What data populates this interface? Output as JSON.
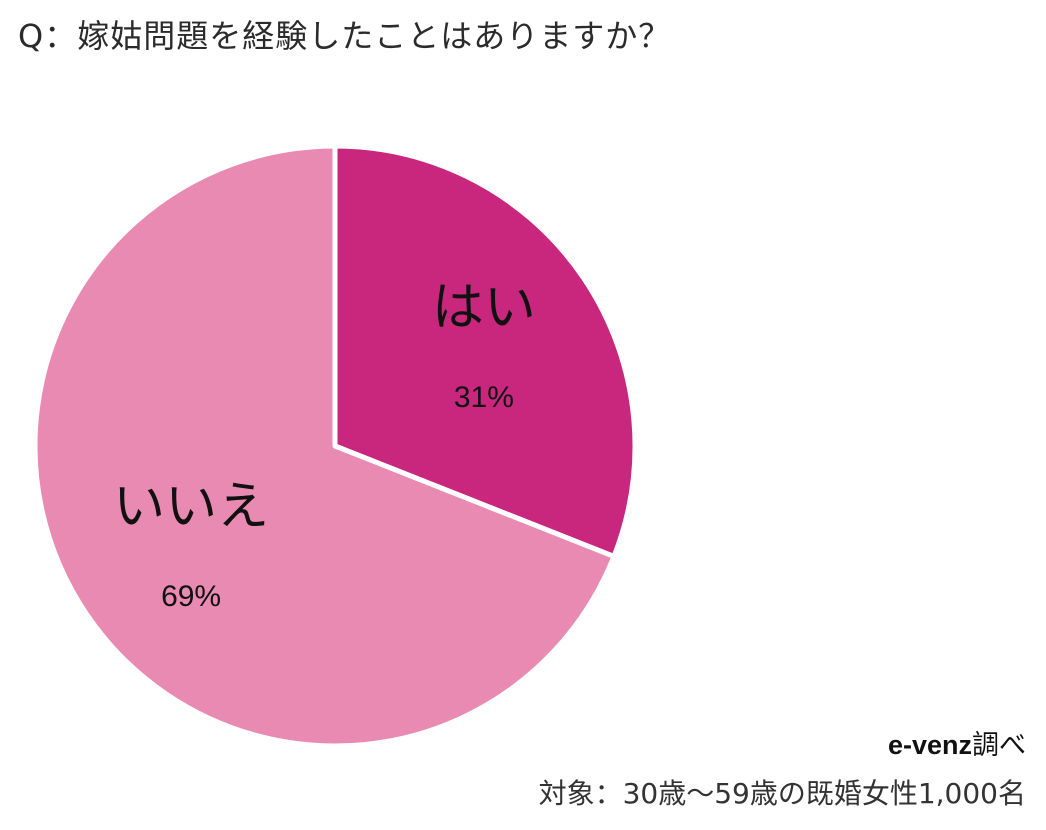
{
  "question": "Q：嫁姑問題を経験したことはありますか？",
  "source": {
    "brand": "e-venz",
    "suffix": "調べ"
  },
  "target": "対象：30歳～59歳の既婚女性1,000名",
  "chart_data": {
    "type": "pie",
    "title": "Q：嫁姑問題を経験したことはありますか？",
    "categories": [
      "はい",
      "いいえ"
    ],
    "values": [
      31,
      69
    ],
    "value_labels": [
      "31%",
      "69%"
    ],
    "colors": [
      "#c8277d",
      "#e98ab2"
    ],
    "start": "12 o'clock",
    "direction": "clockwise",
    "labels_inside": true
  }
}
